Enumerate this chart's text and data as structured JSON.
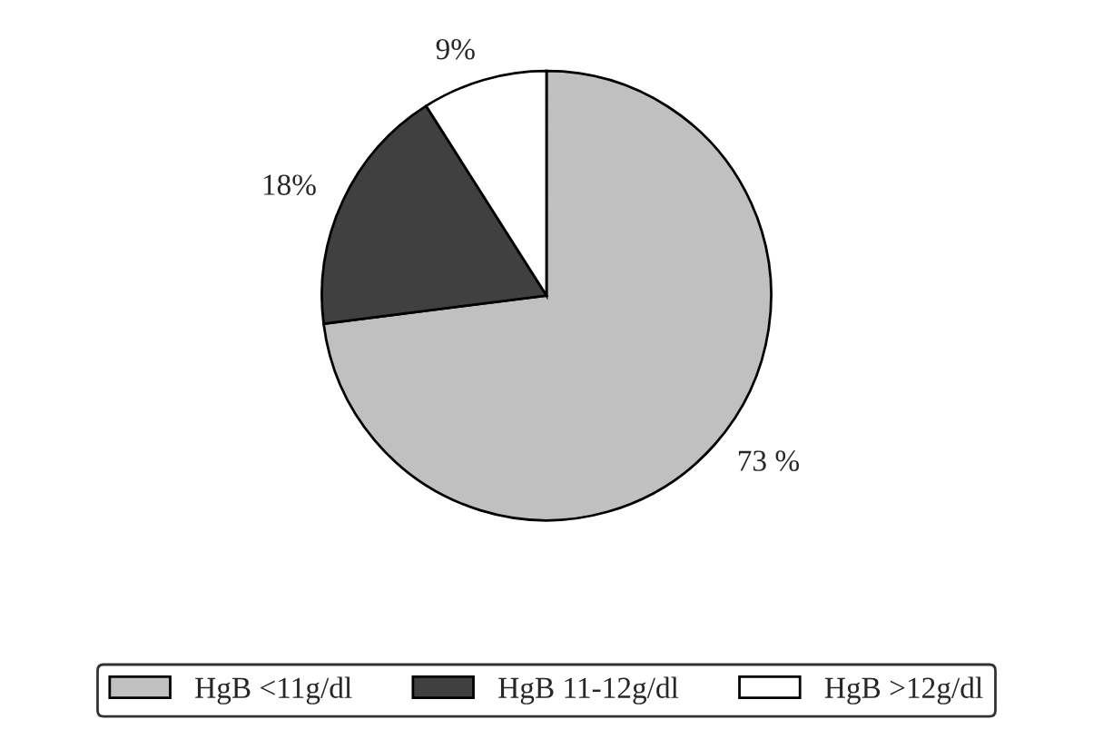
{
  "chart_data": {
    "type": "pie",
    "categories": [
      "HgB <11g/dl",
      "HgB 11-12g/dl",
      "HgB >12g/dl"
    ],
    "values": [
      73,
      18,
      9
    ],
    "value_labels": [
      "73 %",
      "18%",
      "9%"
    ],
    "colors": [
      "#c0c0c0",
      "#404040",
      "#ffffff"
    ],
    "legend": "bottom"
  }
}
